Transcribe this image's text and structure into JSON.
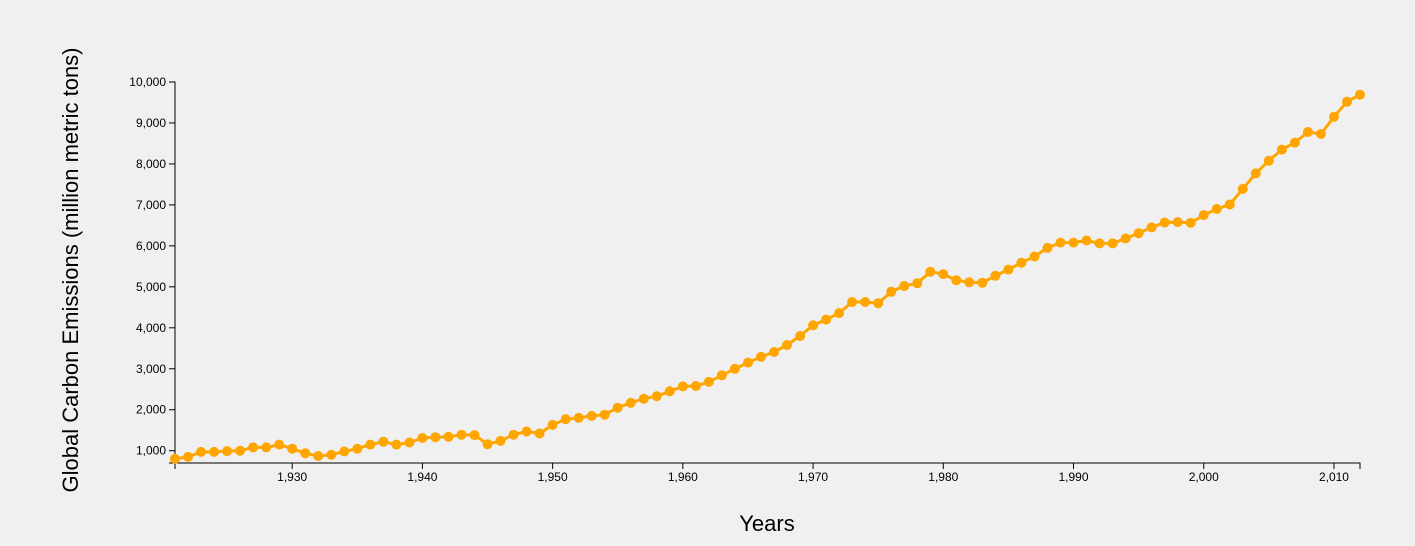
{
  "chart_data": {
    "type": "line",
    "title": "",
    "xlabel": "Years",
    "ylabel": "Global Carbon Emissions (million metric tons)",
    "xlim": [
      1921,
      2012
    ],
    "ylim": [
      700,
      10000
    ],
    "x_ticks": [
      1930,
      1940,
      1950,
      1960,
      1970,
      1980,
      1990,
      2000,
      2010
    ],
    "x_tick_labels": [
      "1,930",
      "1,940",
      "1,950",
      "1,960",
      "1,970",
      "1,980",
      "1,990",
      "2,000",
      "2,010"
    ],
    "y_ticks": [
      1000,
      2000,
      3000,
      4000,
      5000,
      6000,
      7000,
      8000,
      9000,
      10000
    ],
    "y_tick_labels": [
      "1,000",
      "2,000",
      "3,000",
      "4,000",
      "5,000",
      "6,000",
      "7,000",
      "8,000",
      "9,000",
      "10,000"
    ],
    "grid": false,
    "series": [
      {
        "color": "#ffa500",
        "x": [
          1921,
          1922,
          1923,
          1924,
          1925,
          1926,
          1927,
          1928,
          1929,
          1930,
          1931,
          1932,
          1933,
          1934,
          1935,
          1936,
          1937,
          1938,
          1939,
          1940,
          1941,
          1942,
          1943,
          1944,
          1945,
          1946,
          1947,
          1948,
          1949,
          1950,
          1951,
          1952,
          1953,
          1954,
          1955,
          1956,
          1957,
          1958,
          1959,
          1960,
          1961,
          1962,
          1963,
          1964,
          1965,
          1966,
          1967,
          1968,
          1969,
          1970,
          1971,
          1972,
          1973,
          1974,
          1975,
          1976,
          1977,
          1978,
          1979,
          1980,
          1981,
          1982,
          1983,
          1984,
          1985,
          1986,
          1987,
          1988,
          1989,
          1990,
          1991,
          1992,
          1993,
          1994,
          1995,
          1996,
          1997,
          1998,
          1999,
          2000,
          2001,
          2002,
          2003,
          2004,
          2005,
          2006,
          2007,
          2008,
          2009,
          2010,
          2011,
          2012
        ],
        "y": [
          800,
          850,
          970,
          970,
          990,
          1000,
          1080,
          1080,
          1150,
          1050,
          940,
          870,
          900,
          980,
          1050,
          1150,
          1220,
          1150,
          1200,
          1310,
          1330,
          1340,
          1390,
          1380,
          1160,
          1240,
          1390,
          1470,
          1420,
          1630,
          1770,
          1800,
          1850,
          1880,
          2050,
          2170,
          2270,
          2330,
          2450,
          2570,
          2580,
          2680,
          2840,
          3000,
          3150,
          3290,
          3410,
          3580,
          3800,
          4060,
          4200,
          4360,
          4630,
          4630,
          4600,
          4880,
          5020,
          5090,
          5370,
          5310,
          5160,
          5110,
          5100,
          5270,
          5420,
          5590,
          5740,
          5950,
          6080,
          6080,
          6130,
          6060,
          6060,
          6180,
          6310,
          6450,
          6570,
          6580,
          6560,
          6750,
          6900,
          7010,
          7390,
          7770,
          8080,
          8350,
          8520,
          8780,
          8730,
          9150,
          9520,
          9690
        ]
      }
    ]
  }
}
